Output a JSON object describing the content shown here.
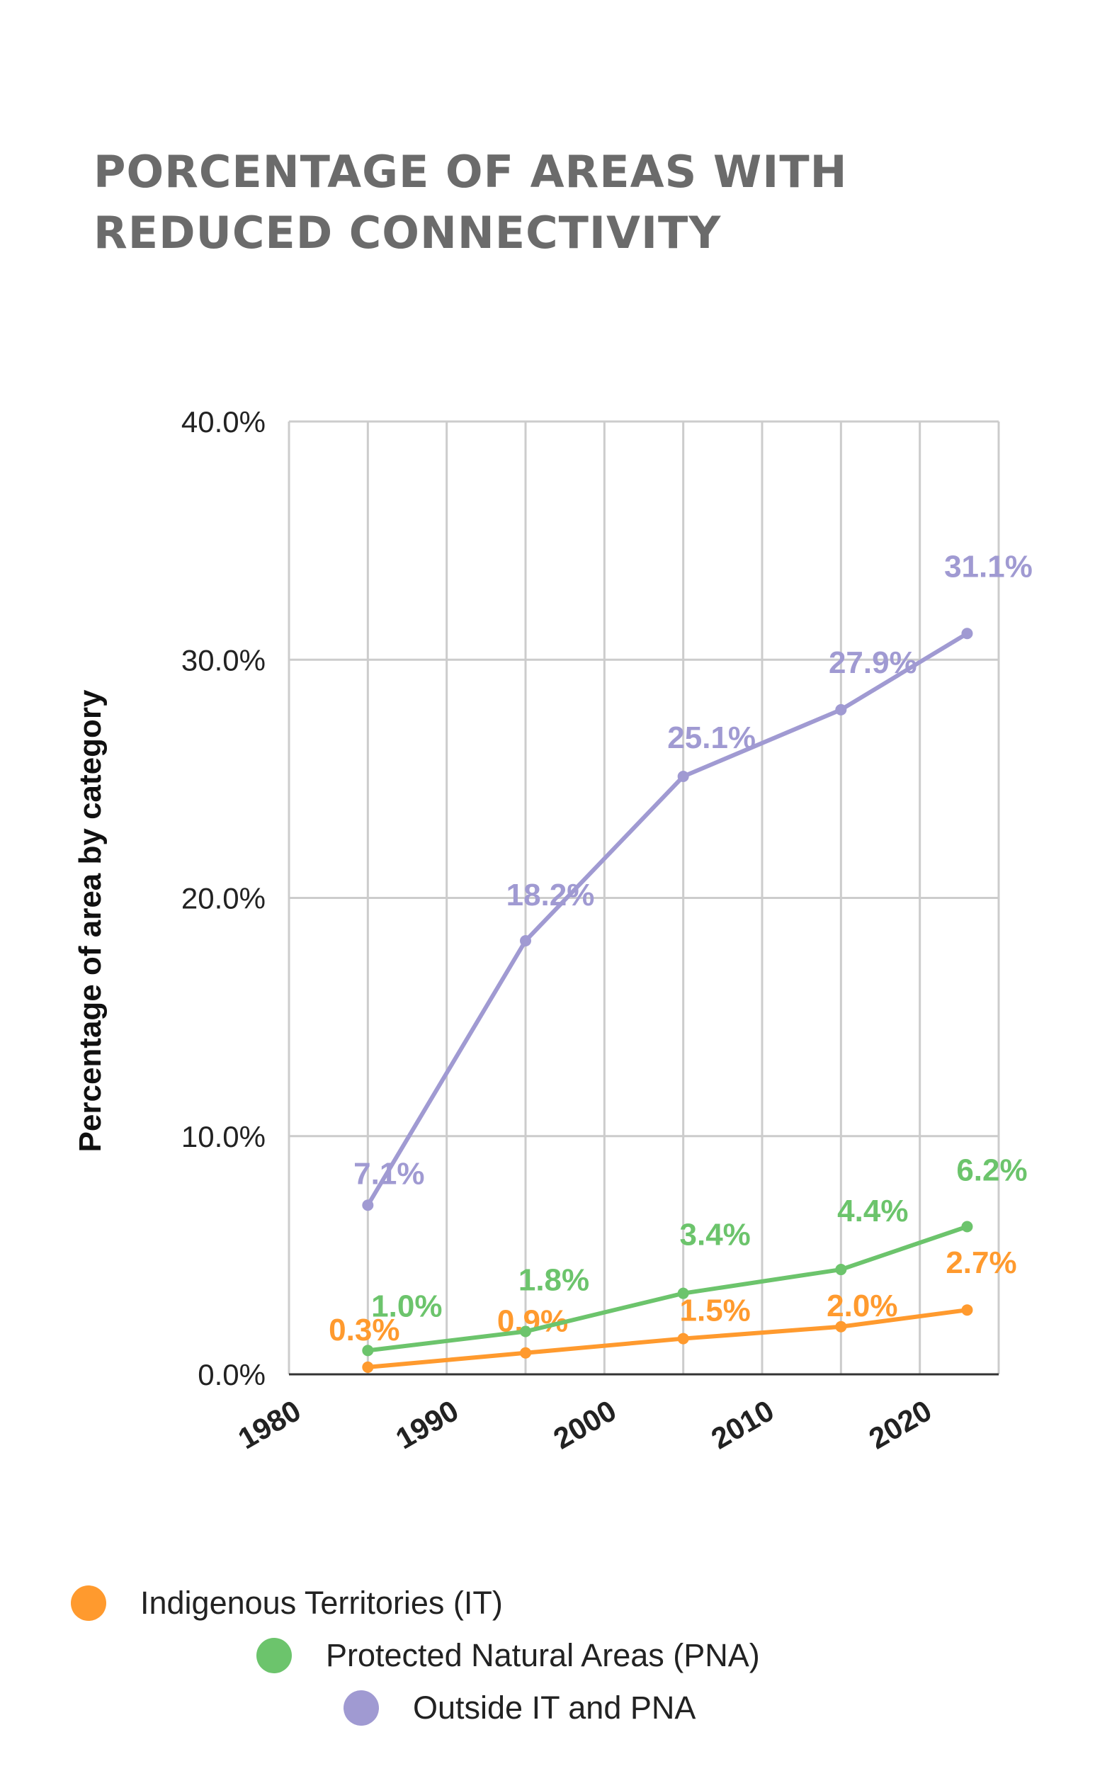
{
  "title": "PORCENTAGE OF AREAS WITH REDUCED CONNECTIVITY",
  "chart_data": {
    "type": "line",
    "title": "PORCENTAGE OF AREAS WITH REDUCED CONNECTIVITY",
    "xlabel": "",
    "ylabel": "Percentage of area by category",
    "x": [
      1985,
      1995,
      2005,
      2015,
      2023
    ],
    "xlim": [
      1980,
      2025
    ],
    "ylim": [
      0,
      40
    ],
    "xticks": [
      "1980",
      "1990",
      "2000",
      "2010",
      "2020"
    ],
    "yticks": [
      "0.0%",
      "10.0%",
      "20.0%",
      "30.0%",
      "40.0%"
    ],
    "grid": true,
    "legend_position": "bottom",
    "series": [
      {
        "name": "Indigenous Territories (IT)",
        "color": "#ff9a2e",
        "values": [
          0.3,
          0.9,
          1.5,
          2.0,
          2.7
        ],
        "labels": [
          "0.3%",
          "0.9%",
          "1.5%",
          "2.0%",
          "2.7%"
        ]
      },
      {
        "name": "Protected Natural Areas (PNA)",
        "color": "#6cc46c",
        "values": [
          1.0,
          1.8,
          3.4,
          4.4,
          6.2
        ],
        "labels": [
          "1.0%",
          "1.8%",
          "3.4%",
          "4.4%",
          "6.2%"
        ]
      },
      {
        "name": "Outside IT and PNA",
        "color": "#a09ad2",
        "values": [
          7.1,
          18.2,
          25.1,
          27.9,
          31.1
        ],
        "labels": [
          "7.1%",
          "18.2%",
          "25.1%",
          "27.9%",
          "31.1%"
        ]
      }
    ]
  }
}
